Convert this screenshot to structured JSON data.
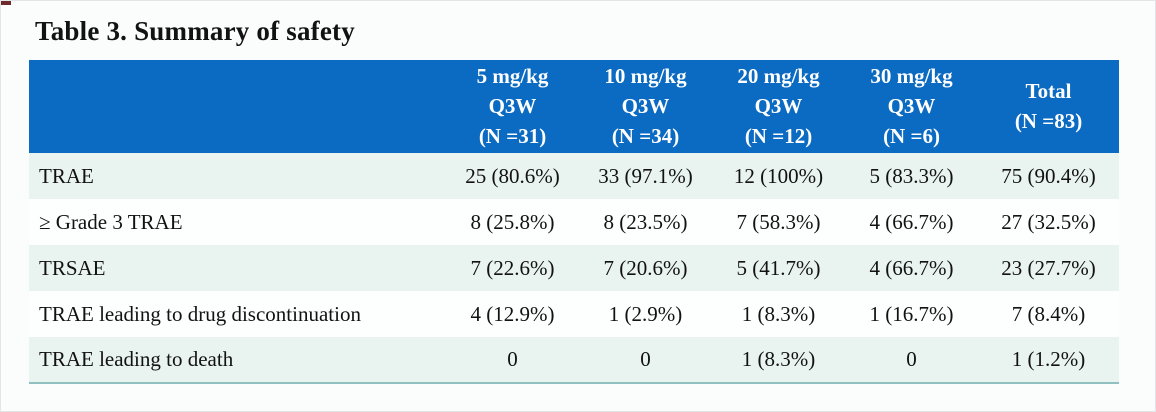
{
  "title": "Table 3. Summary of safety",
  "colors": {
    "header_bg": "#0b6ac1",
    "header_text": "#ffffff",
    "row_band": "#e9f3f0",
    "row_alt": "#fdfefe",
    "table_border": "#8fbfbf"
  },
  "table": {
    "columns": [
      "",
      "5 mg/kg\nQ3W\n(N =31)",
      "10 mg/kg\nQ3W\n(N =34)",
      "20 mg/kg\nQ3W\n(N =12)",
      "30 mg/kg\nQ3W\n(N =6)",
      "Total\n(N =83)"
    ],
    "rows": [
      {
        "label": "TRAE",
        "values": [
          "25 (80.6%)",
          "33 (97.1%)",
          "12 (100%)",
          "5 (83.3%)",
          "75 (90.4%)"
        ]
      },
      {
        "label": "≥ Grade 3 TRAE",
        "values": [
          "8 (25.8%)",
          "8 (23.5%)",
          "7 (58.3%)",
          "4 (66.7%)",
          "27 (32.5%)"
        ]
      },
      {
        "label": "TRSAE",
        "values": [
          "7 (22.6%)",
          "7 (20.6%)",
          "5 (41.7%)",
          "4 (66.7%)",
          "23 (27.7%)"
        ]
      },
      {
        "label": "TRAE leading to drug discontinuation",
        "values": [
          "4 (12.9%)",
          "1 (2.9%)",
          "1 (8.3%)",
          "1 (16.7%)",
          "7 (8.4%)"
        ]
      },
      {
        "label": "TRAE leading to death",
        "values": [
          "0",
          "0",
          "1 (8.3%)",
          "0",
          "1 (1.2%)"
        ]
      }
    ]
  }
}
